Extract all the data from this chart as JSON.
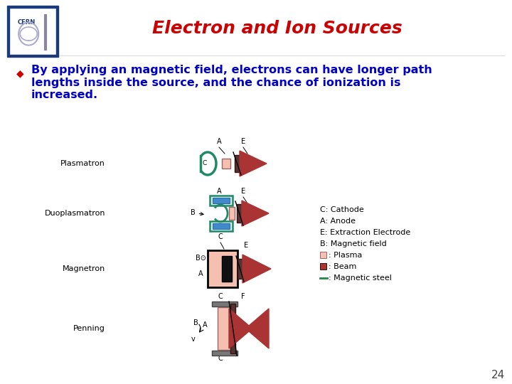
{
  "title": "Electron and Ion Sources",
  "title_color": "#cc0000",
  "title_fontsize": 18,
  "bg_color": "#ffffff",
  "bullet_color": "#cc0000",
  "bullet_symbol": "◆",
  "text_color": "#0000cc",
  "text_fontsize": 11.5,
  "bullet_text_lines": [
    "By applying an magnetic field, electrons can have longer path",
    "lengths inside the source, and the chance of ionization is",
    "increased."
  ],
  "page_number": "24",
  "page_number_color": "#444444",
  "page_number_fontsize": 11,
  "diagram_label_color": "#333333",
  "diagram_label_fontsize": 8,
  "legend_fontsize": 8,
  "teal_face": "#cceeee",
  "teal_edge": "#228866",
  "beam_color": "#aa3333",
  "plasma_color": "#f5c0b0",
  "dark_color": "#553333",
  "black_color": "#111111",
  "green_color": "#228844"
}
